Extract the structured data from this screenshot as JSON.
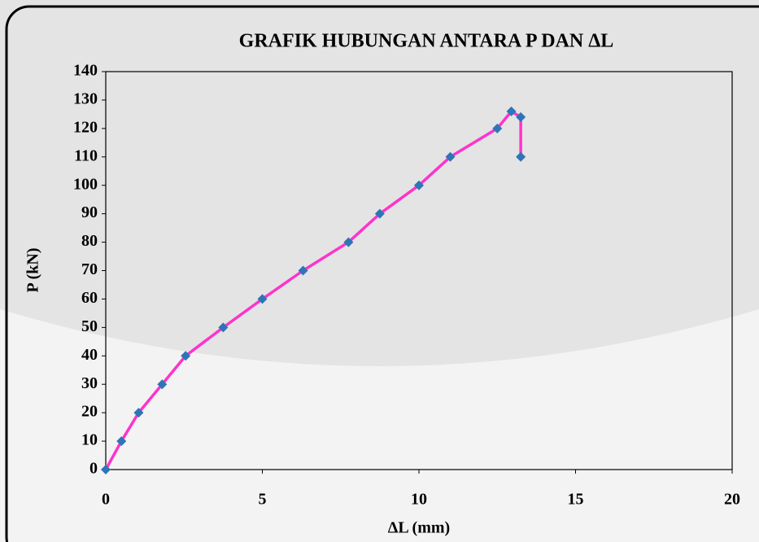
{
  "chart_data": {
    "type": "line",
    "title": "GRAFIK HUBUNGAN ANTARA P DAN ΔL",
    "x_label": "ΔL (mm)",
    "y_label": "P (kN)",
    "x": [
      0,
      0.5,
      1.05,
      1.8,
      2.55,
      3.75,
      5,
      6.3,
      7.75,
      8.75,
      10,
      11,
      12.5,
      12.95,
      13.25,
      13.25
    ],
    "series": [
      {
        "name": "P",
        "line_color": "#ff33cc",
        "color": "#2e75b6",
        "values": [
          0,
          10,
          20,
          30,
          40,
          50,
          60,
          70,
          80,
          90,
          100,
          110,
          120,
          126,
          124,
          110
        ]
      }
    ],
    "xlim": [
      0,
      20
    ],
    "xticks": [
      0,
      5,
      10,
      15,
      20
    ],
    "ylim": [
      0,
      140
    ],
    "yticks": [
      0,
      10,
      20,
      30,
      40,
      50,
      60,
      70,
      80,
      90,
      100,
      110,
      120,
      130,
      140
    ],
    "grid": false
  }
}
